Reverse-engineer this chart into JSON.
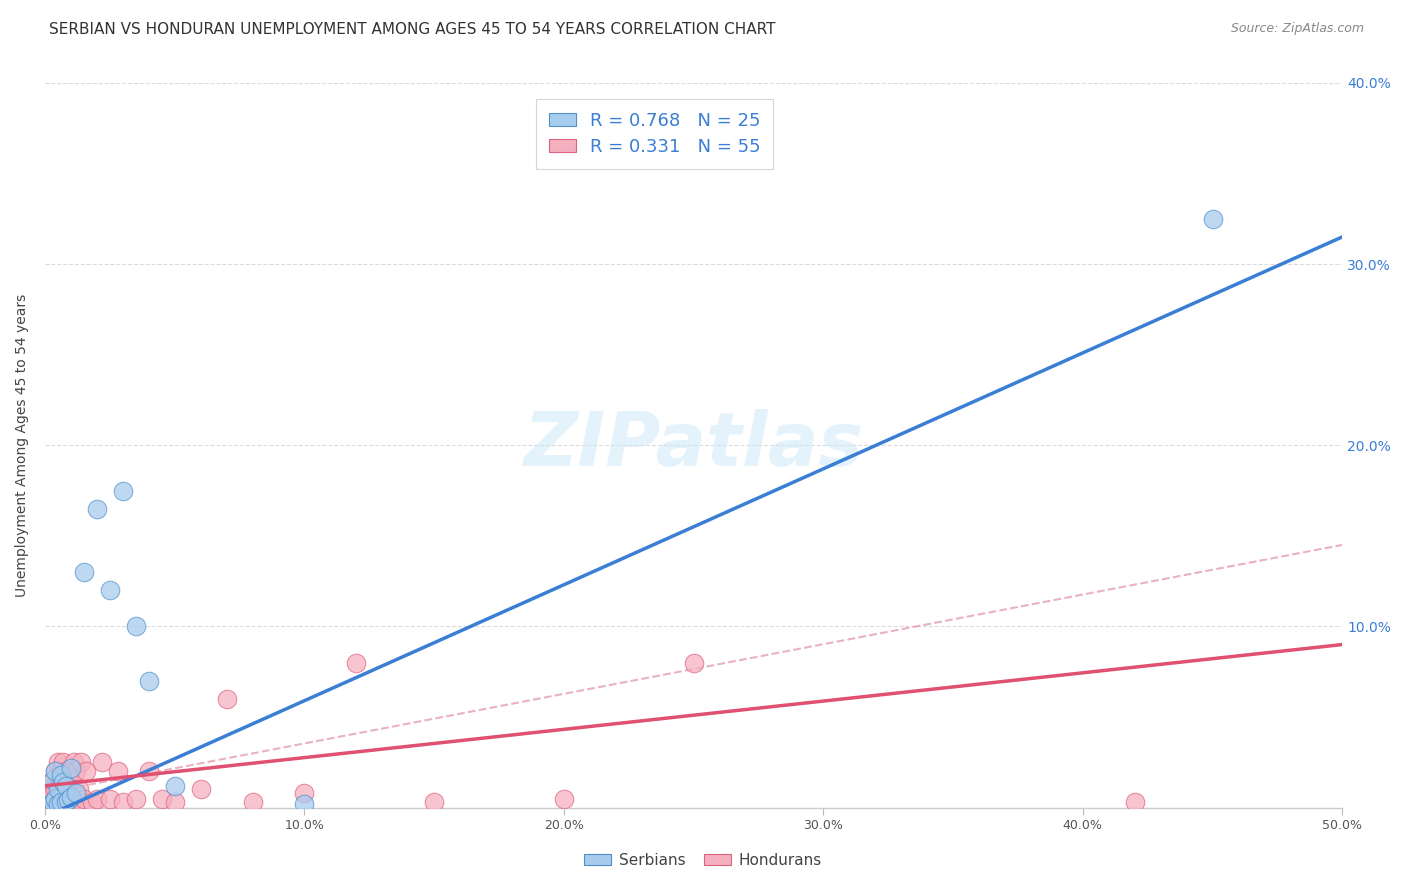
{
  "title": "SERBIAN VS HONDURAN UNEMPLOYMENT AMONG AGES 45 TO 54 YEARS CORRELATION CHART",
  "source": "Source: ZipAtlas.com",
  "ylabel": "Unemployment Among Ages 45 to 54 years",
  "xlim": [
    0,
    0.5
  ],
  "ylim": [
    0,
    0.4
  ],
  "background_color": "#ffffff",
  "watermark_text": "ZIPatlas",
  "watermark_color": "#cde8f8",
  "serbian_fill": "#a8ccee",
  "serbian_edge": "#5090c8",
  "honduran_fill": "#f5b0c0",
  "honduran_edge": "#e06080",
  "serbian_line_color": "#3a7fd5",
  "honduran_line_color": "#e05070",
  "dashed_line_color": "#e090a8",
  "legend_text_color": "#3a7fd5",
  "right_axis_color": "#3a7fd5",
  "legend_R_serbian": "R = 0.768",
  "legend_N_serbian": "N = 25",
  "legend_R_honduran": "R = 0.331",
  "legend_N_honduran": "N = 55",
  "serbian_x": [
    0.002,
    0.003,
    0.003,
    0.004,
    0.004,
    0.005,
    0.005,
    0.006,
    0.006,
    0.007,
    0.008,
    0.008,
    0.009,
    0.01,
    0.01,
    0.012,
    0.015,
    0.02,
    0.025,
    0.03,
    0.035,
    0.04,
    0.05,
    0.1,
    0.45
  ],
  "serbian_y": [
    0.002,
    0.003,
    0.015,
    0.005,
    0.02,
    0.002,
    0.01,
    0.003,
    0.018,
    0.014,
    0.003,
    0.012,
    0.004,
    0.006,
    0.022,
    0.008,
    0.13,
    0.165,
    0.12,
    0.175,
    0.1,
    0.07,
    0.012,
    0.002,
    0.325
  ],
  "honduran_x": [
    0.001,
    0.002,
    0.002,
    0.003,
    0.003,
    0.003,
    0.004,
    0.004,
    0.004,
    0.005,
    0.005,
    0.005,
    0.005,
    0.005,
    0.006,
    0.006,
    0.006,
    0.007,
    0.007,
    0.007,
    0.008,
    0.008,
    0.008,
    0.009,
    0.009,
    0.01,
    0.01,
    0.01,
    0.011,
    0.011,
    0.012,
    0.012,
    0.013,
    0.014,
    0.015,
    0.016,
    0.018,
    0.02,
    0.022,
    0.025,
    0.028,
    0.03,
    0.035,
    0.04,
    0.045,
    0.05,
    0.06,
    0.07,
    0.08,
    0.1,
    0.12,
    0.15,
    0.2,
    0.25,
    0.42
  ],
  "honduran_y": [
    0.003,
    0.005,
    0.01,
    0.003,
    0.008,
    0.015,
    0.004,
    0.01,
    0.02,
    0.002,
    0.006,
    0.012,
    0.018,
    0.025,
    0.003,
    0.01,
    0.02,
    0.005,
    0.015,
    0.025,
    0.003,
    0.01,
    0.02,
    0.005,
    0.015,
    0.003,
    0.01,
    0.02,
    0.005,
    0.025,
    0.003,
    0.02,
    0.01,
    0.025,
    0.005,
    0.02,
    0.003,
    0.005,
    0.025,
    0.005,
    0.02,
    0.003,
    0.005,
    0.02,
    0.005,
    0.003,
    0.01,
    0.06,
    0.003,
    0.008,
    0.08,
    0.003,
    0.005,
    0.08,
    0.003
  ],
  "serbian_line_x0": 0.0,
  "serbian_line_y0": -0.005,
  "serbian_line_x1": 0.5,
  "serbian_line_y1": 0.315,
  "honduran_line_x0": 0.0,
  "honduran_line_y0": 0.012,
  "honduran_line_x1": 0.5,
  "honduran_line_y1": 0.09,
  "dashed_line_x0": 0.0,
  "dashed_line_y0": 0.008,
  "dashed_line_x1": 0.5,
  "dashed_line_y1": 0.145,
  "title_fontsize": 11,
  "source_fontsize": 9,
  "ylabel_fontsize": 10,
  "tick_fontsize": 9,
  "legend_fontsize": 13
}
